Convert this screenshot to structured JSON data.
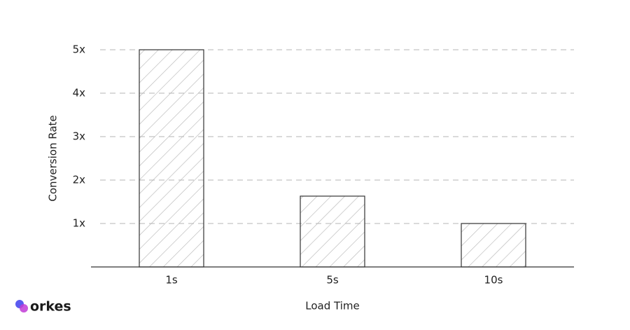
{
  "chart_data": {
    "type": "bar",
    "x_label": "Load Time",
    "y_label": "Conversion Rate",
    "categories": [
      "1s",
      "5s",
      "10s"
    ],
    "values": [
      5,
      1.63,
      1
    ],
    "color": "#b8b8b8",
    "ylim": [
      0,
      5
    ],
    "yticks": [
      {
        "value": 1,
        "label": "1x"
      },
      {
        "value": 2,
        "label": "2x"
      },
      {
        "value": 3,
        "label": "3x"
      },
      {
        "value": 4,
        "label": "4x"
      },
      {
        "value": 5,
        "label": "5x"
      }
    ],
    "grid": true
  },
  "brand": "orkes"
}
